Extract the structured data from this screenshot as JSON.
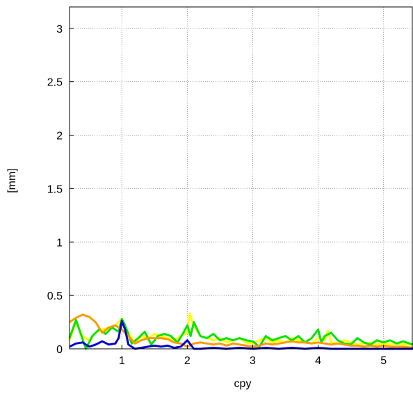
{
  "chart_data": {
    "type": "line",
    "title": "",
    "xlabel": "cpy",
    "ylabel": "[mm]",
    "xlim": [
      0.2,
      5.45
    ],
    "ylim": [
      0,
      3.2
    ],
    "xticks": [
      1,
      2,
      3,
      4,
      5
    ],
    "yticks": [
      0,
      0.5,
      1,
      1.5,
      2,
      2.5,
      3
    ],
    "xtick_labels": [
      "1",
      "2",
      "3",
      "4",
      "5"
    ],
    "ytick_labels": [
      "0",
      "0.5",
      "1",
      "1.5",
      "2",
      "2.5",
      "3"
    ],
    "grid": true,
    "legend": "none",
    "series": [
      {
        "color": "#ffff00",
        "x": [
          0.2,
          0.3,
          0.4,
          0.5,
          0.6,
          0.7,
          0.8,
          0.9,
          1.0,
          1.1,
          1.2,
          1.3,
          1.4,
          1.5,
          1.6,
          1.7,
          1.8,
          1.9,
          2.0,
          2.04,
          2.1,
          2.2,
          2.3,
          2.4,
          2.5,
          2.6,
          2.7,
          2.8,
          2.9,
          3.0,
          3.1,
          3.2,
          3.3,
          3.4,
          3.5,
          3.6,
          3.7,
          3.8,
          3.9,
          4.0,
          4.1,
          4.15,
          4.2,
          4.3,
          4.4,
          4.5,
          4.6,
          4.7,
          4.8,
          4.9,
          5.0,
          5.1,
          5.2,
          5.3,
          5.45
        ],
        "y": [
          0.08,
          0.25,
          0.12,
          0.08,
          0.15,
          0.18,
          0.2,
          0.22,
          0.28,
          0.15,
          0.06,
          0.12,
          0.1,
          0.14,
          0.12,
          0.1,
          0.08,
          0.12,
          0.15,
          0.33,
          0.22,
          0.12,
          0.1,
          0.08,
          0.1,
          0.06,
          0.08,
          0.1,
          0.06,
          0.05,
          0.08,
          0.1,
          0.06,
          0.08,
          0.06,
          0.1,
          0.08,
          0.06,
          0.05,
          0.1,
          0.08,
          0.17,
          0.06,
          0.05,
          0.08,
          0.06,
          0.04,
          0.05,
          0.06,
          0.04,
          0.05,
          0.04,
          0.05,
          0.04,
          0.04
        ]
      },
      {
        "color": "#00e600",
        "x": [
          0.2,
          0.3,
          0.35,
          0.45,
          0.55,
          0.65,
          0.75,
          0.85,
          0.95,
          1.0,
          1.05,
          1.15,
          1.25,
          1.35,
          1.45,
          1.55,
          1.65,
          1.75,
          1.85,
          1.95,
          2.0,
          2.05,
          2.1,
          2.2,
          2.3,
          2.4,
          2.5,
          2.6,
          2.7,
          2.8,
          2.9,
          3.0,
          3.1,
          3.2,
          3.3,
          3.4,
          3.5,
          3.6,
          3.7,
          3.8,
          3.9,
          4.0,
          4.05,
          4.1,
          4.2,
          4.3,
          4.4,
          4.5,
          4.6,
          4.7,
          4.8,
          4.9,
          5.0,
          5.1,
          5.2,
          5.3,
          5.45
        ],
        "y": [
          0.1,
          0.27,
          0.18,
          0.0,
          0.12,
          0.18,
          0.14,
          0.2,
          0.16,
          0.28,
          0.22,
          0.05,
          0.1,
          0.16,
          0.04,
          0.12,
          0.14,
          0.12,
          0.06,
          0.16,
          0.22,
          0.12,
          0.25,
          0.12,
          0.1,
          0.14,
          0.08,
          0.1,
          0.08,
          0.1,
          0.08,
          0.07,
          0.02,
          0.12,
          0.08,
          0.1,
          0.12,
          0.08,
          0.12,
          0.06,
          0.1,
          0.18,
          0.06,
          0.12,
          0.15,
          0.08,
          0.05,
          0.04,
          0.1,
          0.06,
          0.04,
          0.08,
          0.06,
          0.08,
          0.05,
          0.07,
          0.04
        ]
      },
      {
        "color": "#ff9900",
        "x": [
          0.2,
          0.3,
          0.4,
          0.5,
          0.6,
          0.7,
          0.8,
          0.9,
          1.0,
          1.1,
          1.2,
          1.3,
          1.4,
          1.5,
          1.6,
          1.7,
          1.8,
          1.9,
          2.0,
          2.1,
          2.2,
          2.3,
          2.4,
          2.5,
          2.6,
          2.7,
          2.8,
          2.9,
          3.0,
          3.1,
          3.2,
          3.3,
          3.4,
          3.5,
          3.6,
          3.7,
          3.8,
          3.9,
          4.0,
          4.1,
          4.2,
          4.3,
          4.4,
          4.5,
          4.6,
          4.7,
          4.8,
          4.9,
          5.0,
          5.1,
          5.2,
          5.3,
          5.45
        ],
        "y": [
          0.25,
          0.29,
          0.32,
          0.3,
          0.25,
          0.15,
          0.2,
          0.22,
          0.18,
          0.12,
          0.05,
          0.08,
          0.1,
          0.1,
          0.1,
          0.09,
          0.06,
          0.05,
          0.02,
          0.05,
          0.06,
          0.05,
          0.04,
          0.05,
          0.03,
          0.05,
          0.04,
          0.03,
          0.02,
          0.03,
          0.05,
          0.04,
          0.05,
          0.06,
          0.07,
          0.06,
          0.06,
          0.05,
          0.06,
          0.05,
          0.04,
          0.05,
          0.04,
          0.03,
          0.03,
          0.02,
          0.03,
          0.02,
          0.03,
          0.02,
          0.02,
          0.02,
          0.01
        ]
      },
      {
        "color": "#0000cc",
        "x": [
          0.2,
          0.3,
          0.4,
          0.5,
          0.6,
          0.7,
          0.8,
          0.9,
          0.95,
          1.0,
          1.05,
          1.1,
          1.2,
          1.3,
          1.4,
          1.5,
          1.6,
          1.7,
          1.8,
          1.9,
          2.0,
          2.05,
          2.1,
          2.2,
          2.4,
          2.6,
          2.8,
          3.0,
          3.2,
          3.4,
          3.6,
          3.8,
          4.0,
          4.2,
          4.4,
          4.6,
          4.8,
          5.0,
          5.2,
          5.45
        ],
        "y": [
          0.02,
          0.05,
          0.06,
          0.02,
          0.04,
          0.07,
          0.04,
          0.05,
          0.1,
          0.26,
          0.18,
          0.04,
          0.0,
          0.01,
          0.02,
          0.03,
          0.02,
          0.03,
          0.01,
          0.02,
          0.08,
          0.04,
          0.0,
          0.0,
          0.01,
          0.0,
          0.01,
          0.0,
          0.01,
          0.0,
          0.01,
          0.0,
          0.01,
          0.0,
          0.0,
          0.0,
          0.0,
          0.0,
          0.0,
          0.0
        ]
      }
    ]
  }
}
